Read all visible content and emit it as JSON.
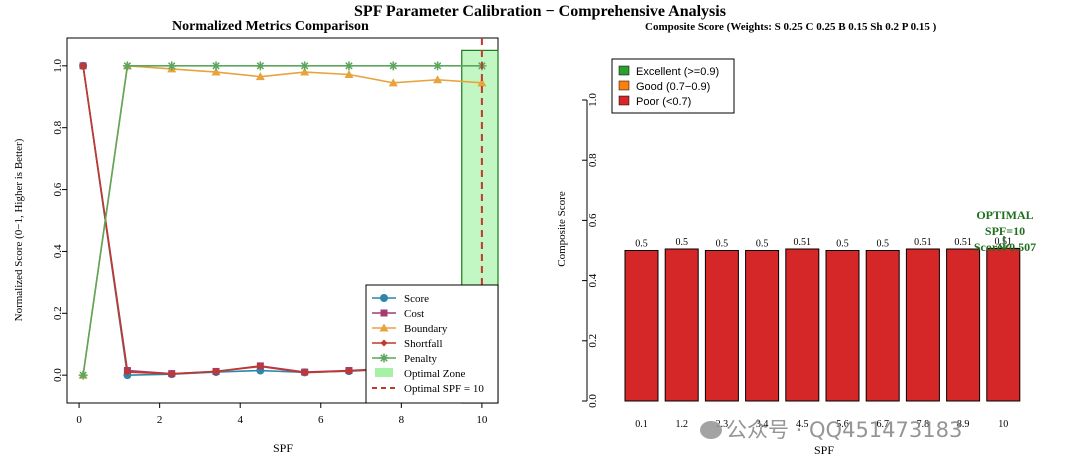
{
  "figure_title": "SPF Parameter Calibration − Comprehensive Analysis",
  "watermark": "公众号 · QQ451473183",
  "colors": {
    "score": "#2e86ab",
    "cost": "#a23b72",
    "boundary": "#e8a33d",
    "shortfall": "#c0392b",
    "penalty": "#5da65d",
    "optimal_zone": "#90ee90",
    "optimal_line": "#c0392b",
    "bar_poor": "#d62728",
    "excellent": "#2ca02c",
    "good": "#ff7f0e",
    "annot": "#1f6f1f"
  },
  "chart_data": [
    {
      "type": "line",
      "title": "Normalized Metrics Comparison",
      "xlabel": "SPF",
      "ylabel": "Normalized Score (0−1, Higher is Better)",
      "xlim": [
        -0.3,
        10.4
      ],
      "ylim": [
        -0.09,
        1.09
      ],
      "xticks": [
        0,
        2,
        4,
        6,
        8,
        10
      ],
      "yticks": [
        0.0,
        0.2,
        0.4,
        0.6,
        0.8,
        1.0
      ],
      "x": [
        0.1,
        1.2,
        2.3,
        3.4,
        4.5,
        5.6,
        6.7,
        7.8,
        8.9,
        10
      ],
      "series": [
        {
          "name": "Score",
          "marker": "circle",
          "values": [
            1.0,
            0.0,
            0.003,
            0.01,
            0.015,
            0.009,
            0.013,
            0.02,
            0.012,
            0.004
          ]
        },
        {
          "name": "Cost",
          "marker": "square",
          "values": [
            1.0,
            0.015,
            0.005,
            0.012,
            0.03,
            0.01,
            0.015,
            0.022,
            0.018,
            0.01
          ]
        },
        {
          "name": "Boundary",
          "marker": "triangle",
          "values": [
            0.0,
            1.0,
            0.99,
            0.98,
            0.965,
            0.98,
            0.972,
            0.945,
            0.955,
            0.945
          ]
        },
        {
          "name": "Shortfall",
          "marker": "diamond",
          "values": [
            1.0,
            0.01,
            0.004,
            0.012,
            0.028,
            0.008,
            0.014,
            0.02,
            0.016,
            0.006
          ]
        },
        {
          "name": "Penalty",
          "marker": "asterisk",
          "values": [
            0.0,
            1.0,
            1.0,
            1.0,
            1.0,
            1.0,
            1.0,
            1.0,
            1.0,
            1.0
          ]
        }
      ],
      "optimal_zone": {
        "label": "Optimal Zone",
        "x_range": [
          9.5,
          10.5
        ],
        "y_range": [
          -0.09,
          1.05
        ]
      },
      "optimal_line": {
        "label": "Optimal SPF = 10",
        "x": 10
      },
      "legend": {
        "position": "bottom-right",
        "items": [
          "Score",
          "Cost",
          "Boundary",
          "Shortfall",
          "Penalty",
          "Optimal Zone",
          "Optimal SPF = 10"
        ]
      }
    },
    {
      "type": "bar",
      "title": "Composite Score (Weights: S 0.25  C 0.25  B 0.15  Sh 0.2  P 0.15 )",
      "xlabel": "SPF",
      "ylabel": "Composite Score",
      "ylim": [
        0.0,
        1.0
      ],
      "yticks": [
        0.0,
        0.2,
        0.4,
        0.6,
        0.8,
        1.0
      ],
      "categories": [
        "0.1",
        "1.2",
        "2.3",
        "3.4",
        "4.5",
        "5.6",
        "6.7",
        "7.8",
        "8.9",
        "10"
      ],
      "values": [
        0.5,
        0.505,
        0.5,
        0.5,
        0.505,
        0.5,
        0.5,
        0.505,
        0.505,
        0.507
      ],
      "value_labels": [
        "0.5",
        "0.5",
        "0.5",
        "0.5",
        "0.51",
        "0.5",
        "0.5",
        "0.51",
        "0.51",
        "0.51"
      ],
      "legend": {
        "position": "top-left",
        "items": [
          {
            "label": "Excellent (>=0.9)",
            "color_key": "excellent"
          },
          {
            "label": "Good (0.7−0.9)",
            "color_key": "good"
          },
          {
            "label": "Poor (<0.7)",
            "color_key": "bar_poor"
          }
        ]
      },
      "annotation": {
        "lines": [
          "OPTIMAL",
          "SPF=10",
          "Score=0.507"
        ],
        "target_category": "10"
      }
    }
  ]
}
